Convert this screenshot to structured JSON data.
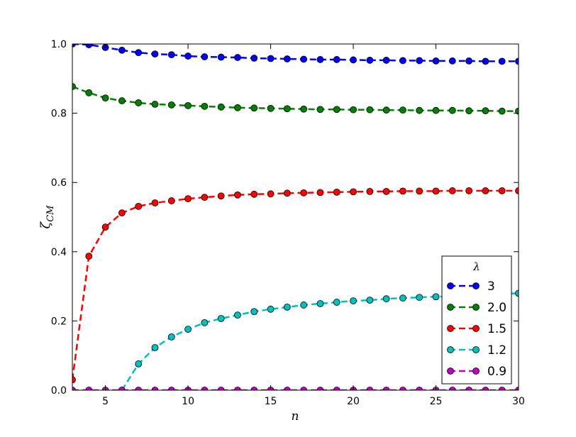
{
  "chart_data": {
    "type": "line",
    "x_label": "n",
    "y_label": "ζ",
    "y_label_sub": "CM",
    "legend_title": "λ",
    "legend": "lower right",
    "x": [
      3,
      4,
      5,
      6,
      7,
      8,
      9,
      10,
      11,
      12,
      13,
      14,
      15,
      16,
      17,
      18,
      19,
      20,
      21,
      22,
      23,
      24,
      25,
      26,
      27,
      28,
      29,
      30
    ],
    "xlim": [
      3,
      30
    ],
    "xticks": [
      5,
      10,
      15,
      20,
      25,
      30
    ],
    "ylim": [
      0,
      1
    ],
    "yticks": [
      {
        "value": 0,
        "label": "0.0"
      },
      {
        "value": 0.2,
        "label": "0.2"
      },
      {
        "value": 0.4,
        "label": "0.4"
      },
      {
        "value": 0.6,
        "label": "0.6"
      },
      {
        "value": 0.8,
        "label": "0.8"
      },
      {
        "value": 1,
        "label": "1.0"
      }
    ],
    "series": [
      {
        "name": "3",
        "color": "#0000ff",
        "values": [
          1.0,
          0.998,
          0.99,
          0.982,
          0.975,
          0.971,
          0.969,
          0.965,
          0.963,
          0.962,
          0.961,
          0.959,
          0.958,
          0.957,
          0.956,
          0.955,
          0.955,
          0.954,
          0.953,
          0.953,
          0.952,
          0.952,
          0.951,
          0.951,
          0.951,
          0.95,
          0.95,
          0.95
        ]
      },
      {
        "name": "2.0",
        "color": "#008000",
        "values": [
          0.877,
          0.859,
          0.844,
          0.836,
          0.83,
          0.826,
          0.824,
          0.822,
          0.82,
          0.818,
          0.816,
          0.815,
          0.814,
          0.813,
          0.812,
          0.811,
          0.811,
          0.81,
          0.81,
          0.809,
          0.809,
          0.808,
          0.808,
          0.808,
          0.807,
          0.807,
          0.806,
          0.806
        ]
      },
      {
        "name": "1.5",
        "color": "#ff0000",
        "values": [
          0.03,
          0.387,
          0.471,
          0.512,
          0.531,
          0.541,
          0.547,
          0.553,
          0.557,
          0.561,
          0.564,
          0.566,
          0.567,
          0.569,
          0.57,
          0.571,
          0.572,
          0.573,
          0.574,
          0.574,
          0.575,
          0.575,
          0.575,
          0.576,
          0.576,
          0.576,
          0.576,
          0.576
        ]
      },
      {
        "name": "1.2",
        "color": "#00bfbf",
        "values": [
          null,
          null,
          null,
          0.0,
          0.076,
          0.123,
          0.154,
          0.176,
          0.195,
          0.207,
          0.217,
          0.227,
          0.234,
          0.24,
          0.246,
          0.25,
          0.254,
          0.258,
          0.26,
          0.264,
          0.266,
          0.268,
          0.27,
          0.272,
          0.274,
          0.276,
          0.278,
          0.28
        ]
      },
      {
        "name": "0.9",
        "color": "#bf00bf",
        "values": [
          0,
          0,
          0,
          0,
          0,
          0,
          0,
          0,
          0,
          0,
          0,
          0,
          0,
          0,
          0,
          0,
          0,
          0,
          0,
          0,
          0,
          0,
          0,
          0,
          0,
          0,
          0,
          0
        ]
      }
    ]
  }
}
